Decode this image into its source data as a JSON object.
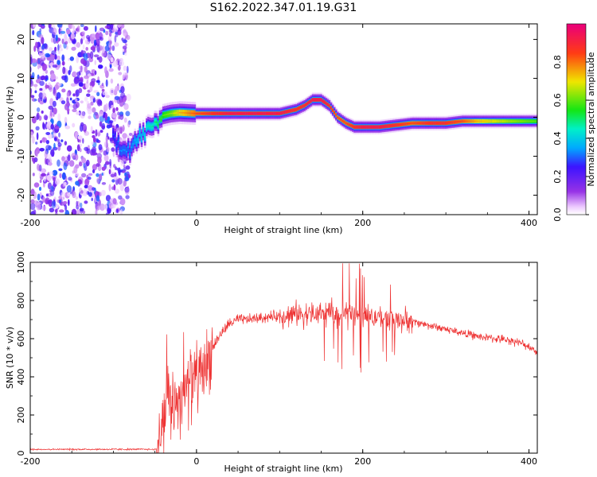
{
  "title": "S162.2022.347.01.19.G31",
  "chart_data": [
    {
      "type": "heatmap",
      "name": "spectrogram",
      "xlabel": "Height of straight line (km)",
      "ylabel": "Frequency (Hz)",
      "xlim": [
        -200,
        410
      ],
      "ylim": [
        -25,
        24
      ],
      "xticks": [
        -200,
        0,
        200,
        400
      ],
      "yticks": [
        -20,
        -10,
        0,
        10,
        20
      ],
      "colorbar": {
        "label": "Normalized spectral amplitude",
        "range": [
          0,
          1
        ],
        "ticks": [
          0.0,
          0.2,
          0.4,
          0.6,
          0.8
        ],
        "tick_labels": [
          "0.0",
          "0.2",
          "0.4",
          "0.6",
          "0.8"
        ]
      },
      "noise_region_x": [
        -200,
        -82
      ],
      "ridge": {
        "x": [
          -100,
          -90,
          -80,
          -70,
          -60,
          -50,
          -40,
          -30,
          -20,
          0,
          20,
          40,
          60,
          80,
          100,
          120,
          130,
          140,
          150,
          160,
          170,
          180,
          190,
          200,
          220,
          240,
          260,
          280,
          300,
          320,
          340,
          360,
          380,
          410
        ],
        "freq": [
          -5.5,
          -7.5,
          -8.0,
          -5.5,
          -3.5,
          -2.0,
          0.5,
          1.0,
          1.2,
          1.0,
          1.0,
          1.0,
          1.0,
          1.0,
          1.0,
          2.0,
          3.0,
          4.5,
          4.5,
          3.0,
          0.0,
          -1.5,
          -2.5,
          -2.5,
          -2.5,
          -2.0,
          -1.5,
          -1.5,
          -1.5,
          -1.0,
          -1.0,
          -1.0,
          -1.0,
          -1.0
        ],
        "amp": [
          0.25,
          0.3,
          0.3,
          0.35,
          0.4,
          0.45,
          0.55,
          0.6,
          0.7,
          0.8,
          0.85,
          0.9,
          0.9,
          0.9,
          0.9,
          0.85,
          0.85,
          0.9,
          0.9,
          0.85,
          0.8,
          0.8,
          0.85,
          0.9,
          0.9,
          0.85,
          0.8,
          0.85,
          0.85,
          0.8,
          0.7,
          0.65,
          0.6,
          0.55
        ]
      }
    },
    {
      "type": "line",
      "name": "snr",
      "xlabel": "Height of straight line (km)",
      "ylabel": "SNR (10 * v/v)",
      "xlim": [
        -200,
        410
      ],
      "ylim": [
        0,
        1000
      ],
      "xticks": [
        -200,
        0,
        200,
        400
      ],
      "yticks": [
        0,
        200,
        400,
        600,
        800,
        1000
      ],
      "color": "#ee3333",
      "envelope": {
        "x": [
          -200,
          -100,
          -48,
          -44,
          -40,
          -30,
          -20,
          -10,
          0,
          10,
          20,
          30,
          40,
          50,
          60,
          80,
          100,
          120,
          140,
          160,
          180,
          200,
          220,
          240,
          260,
          280,
          300,
          320,
          340,
          360,
          380,
          400,
          410
        ],
        "y": [
          20,
          20,
          20,
          100,
          200,
          260,
          300,
          350,
          400,
          450,
          560,
          630,
          680,
          700,
          700,
          710,
          720,
          730,
          730,
          730,
          730,
          720,
          710,
          700,
          690,
          670,
          650,
          630,
          610,
          600,
          590,
          560,
          530
        ]
      }
    }
  ]
}
